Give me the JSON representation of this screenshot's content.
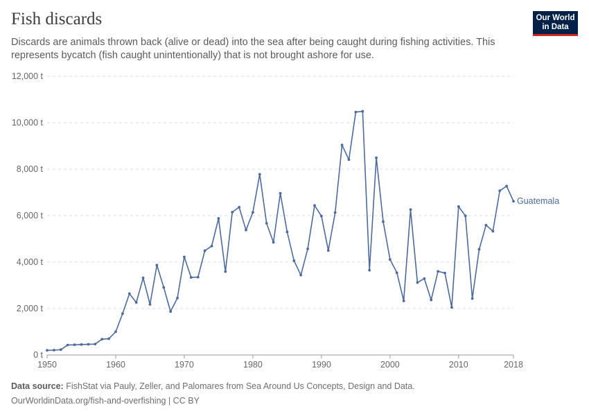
{
  "header": {
    "title": "Fish discards",
    "subtitle": "Discards are animals thrown back (alive or dead) into the sea after being caught during fishing activities. This represents bycatch (fish caught unintentionally) that is not brought ashore for use."
  },
  "logo": {
    "line1": "Our World",
    "line2": "in Data",
    "bg_color": "#002147",
    "accent_color": "#ce261e"
  },
  "footer": {
    "source_label": "Data source:",
    "source_text": "FishStat via Pauly, Zeller, and Palomares from Sea Around Us Concepts, Design and Data.",
    "url_text": "OurWorldinData.org/fish-and-overfishing | CC BY"
  },
  "chart_data": {
    "type": "line",
    "title": "Fish discards",
    "xlabel": "",
    "ylabel": "",
    "xlim": [
      1950,
      2018
    ],
    "ylim": [
      0,
      12000
    ],
    "x_ticks": [
      "1950",
      "1960",
      "1970",
      "1980",
      "1990",
      "2000",
      "2010",
      "2018"
    ],
    "y_ticks": [
      "0 t",
      "2,000 t",
      "4,000 t",
      "6,000 t",
      "8,000 t",
      "10,000 t",
      "12,000 t"
    ],
    "grid": "horizontal-dashed",
    "line_color": "#4c6a9c",
    "series": [
      {
        "name": "Guatemala",
        "x": [
          1950,
          1951,
          1952,
          1953,
          1954,
          1955,
          1956,
          1957,
          1958,
          1959,
          1960,
          1961,
          1962,
          1963,
          1964,
          1965,
          1966,
          1967,
          1968,
          1969,
          1970,
          1971,
          1972,
          1973,
          1974,
          1975,
          1976,
          1977,
          1978,
          1979,
          1980,
          1981,
          1982,
          1983,
          1984,
          1985,
          1986,
          1987,
          1988,
          1989,
          1990,
          1991,
          1992,
          1993,
          1994,
          1995,
          1996,
          1997,
          1998,
          1999,
          2000,
          2001,
          2002,
          2003,
          2004,
          2005,
          2006,
          2007,
          2008,
          2009,
          2010,
          2011,
          2012,
          2013,
          2014,
          2015,
          2016,
          2017,
          2018
        ],
        "values": [
          200,
          210,
          230,
          430,
          440,
          450,
          460,
          470,
          680,
          700,
          1000,
          1780,
          2640,
          2260,
          3320,
          2180,
          3870,
          2910,
          1870,
          2450,
          4220,
          3340,
          3350,
          4490,
          4690,
          5880,
          3590,
          6150,
          6360,
          5380,
          6140,
          7780,
          5670,
          4850,
          6960,
          5300,
          4060,
          3440,
          4570,
          6440,
          5980,
          4500,
          6130,
          9040,
          8410,
          10460,
          10490,
          3650,
          8490,
          5740,
          4110,
          3540,
          2330,
          6260,
          3120,
          3290,
          2370,
          3600,
          3530,
          2050,
          6390,
          5990,
          2430,
          4550,
          5590,
          5330,
          7070,
          7270,
          6620
        ]
      }
    ]
  }
}
